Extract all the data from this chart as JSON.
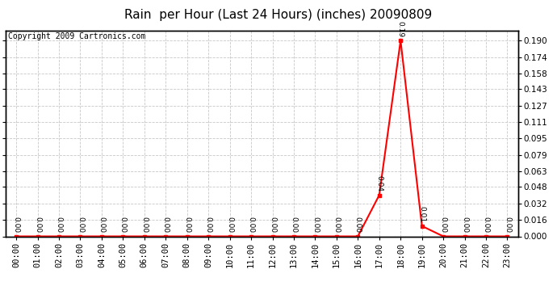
{
  "title": "Rain  per Hour (Last 24 Hours) (inches) 20090809",
  "copyright": "Copyright 2009 Cartronics.com",
  "hours": [
    "00:00",
    "01:00",
    "02:00",
    "03:00",
    "04:00",
    "05:00",
    "06:00",
    "07:00",
    "08:00",
    "09:00",
    "10:00",
    "11:00",
    "12:00",
    "13:00",
    "14:00",
    "15:00",
    "16:00",
    "17:00",
    "18:00",
    "19:00",
    "20:00",
    "21:00",
    "22:00",
    "23:00"
  ],
  "values": [
    0.0,
    0.0,
    0.0,
    0.0,
    0.0,
    0.0,
    0.0,
    0.0,
    0.0,
    0.0,
    0.0,
    0.0,
    0.0,
    0.0,
    0.0,
    0.0,
    0.0,
    0.04,
    0.19,
    0.01,
    0.0,
    0.0,
    0.0,
    0.0
  ],
  "line_color": "#ff0000",
  "marker_color": "#ff0000",
  "bg_color": "#ffffff",
  "grid_color": "#c8c8c8",
  "title_color": "#000000",
  "ylim": [
    0.0,
    0.2
  ],
  "yticks": [
    0.0,
    0.016,
    0.032,
    0.048,
    0.063,
    0.079,
    0.095,
    0.111,
    0.127,
    0.143,
    0.158,
    0.174,
    0.19
  ],
  "title_fontsize": 11,
  "copyright_fontsize": 7,
  "tick_fontsize": 7.5,
  "annotation_fontsize": 6.5,
  "figwidth": 6.9,
  "figheight": 3.75,
  "dpi": 100
}
